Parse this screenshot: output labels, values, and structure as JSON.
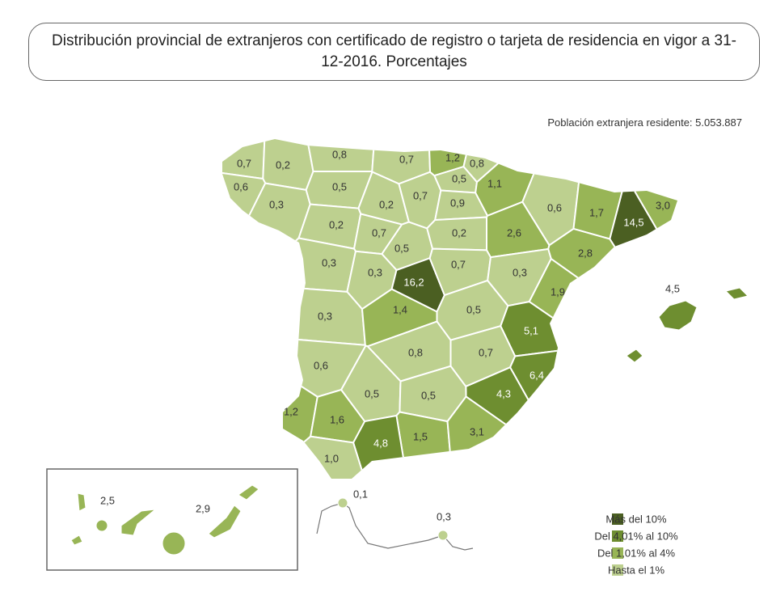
{
  "map": {
    "title": "Distribución provincial de extranjeros con certificado de registro o tarjeta de residencia en vigor a 31-12-2016. Porcentajes",
    "note": "Población extranjera residente: 5.053.887",
    "legend": [
      {
        "label": "Más del 10%",
        "color": "#4b5f22"
      },
      {
        "label": "Del 4,01% al 10%",
        "color": "#6e8e30"
      },
      {
        "label": "Del 1,01% al 4%",
        "color": "#98b556"
      },
      {
        "label": "Hasta el 1%",
        "color": "#bdd08f"
      }
    ],
    "regions": [
      {
        "label": "0,7",
        "value": 0.7,
        "color": "#bdd08f"
      },
      {
        "label": "0,2",
        "value": 0.2,
        "color": "#bdd08f"
      },
      {
        "label": "0,6",
        "value": 0.6,
        "color": "#bdd08f"
      },
      {
        "label": "0,3",
        "value": 0.3,
        "color": "#bdd08f"
      },
      {
        "label": "0,8",
        "value": 0.8,
        "color": "#bdd08f"
      },
      {
        "label": "0,7",
        "value": 0.7,
        "color": "#bdd08f"
      },
      {
        "label": "1,2",
        "value": 1.2,
        "color": "#98b556"
      },
      {
        "label": "0,8",
        "value": 0.8,
        "color": "#bdd08f"
      },
      {
        "label": "0,5",
        "value": 0.5,
        "color": "#bdd08f"
      },
      {
        "label": "1,1",
        "value": 1.1,
        "color": "#98b556"
      },
      {
        "label": "0,5",
        "value": 0.5,
        "color": "#bdd08f"
      },
      {
        "label": "0,2",
        "value": 0.2,
        "color": "#bdd08f"
      },
      {
        "label": "0,7",
        "value": 0.7,
        "color": "#bdd08f"
      },
      {
        "label": "0,9",
        "value": 0.9,
        "color": "#bdd08f"
      },
      {
        "label": "0,6",
        "value": 0.6,
        "color": "#bdd08f"
      },
      {
        "label": "1,7",
        "value": 1.7,
        "color": "#98b556"
      },
      {
        "label": "3,0",
        "value": 3.0,
        "color": "#98b556"
      },
      {
        "label": "14,5",
        "value": 14.5,
        "color": "#4b5f22"
      },
      {
        "label": "0,2",
        "value": 0.2,
        "color": "#bdd08f"
      },
      {
        "label": "0,7",
        "value": 0.7,
        "color": "#bdd08f"
      },
      {
        "label": "0,2",
        "value": 0.2,
        "color": "#bdd08f"
      },
      {
        "label": "2,6",
        "value": 2.6,
        "color": "#98b556"
      },
      {
        "label": "2,8",
        "value": 2.8,
        "color": "#98b556"
      },
      {
        "label": "0,5",
        "value": 0.5,
        "color": "#bdd08f"
      },
      {
        "label": "0,3",
        "value": 0.3,
        "color": "#bdd08f"
      },
      {
        "label": "0,3",
        "value": 0.3,
        "color": "#bdd08f"
      },
      {
        "label": "16,2",
        "value": 16.2,
        "color": "#4b5f22"
      },
      {
        "label": "0,7",
        "value": 0.7,
        "color": "#bdd08f"
      },
      {
        "label": "0,3",
        "value": 0.3,
        "color": "#bdd08f"
      },
      {
        "label": "1,9",
        "value": 1.9,
        "color": "#98b556"
      },
      {
        "label": "0,3",
        "value": 0.3,
        "color": "#bdd08f"
      },
      {
        "label": "1,4",
        "value": 1.4,
        "color": "#98b556"
      },
      {
        "label": "0,5",
        "value": 0.5,
        "color": "#bdd08f"
      },
      {
        "label": "5,1",
        "value": 5.1,
        "color": "#6e8e30"
      },
      {
        "label": "0,6",
        "value": 0.6,
        "color": "#bdd08f"
      },
      {
        "label": "0,8",
        "value": 0.8,
        "color": "#bdd08f"
      },
      {
        "label": "0,7",
        "value": 0.7,
        "color": "#bdd08f"
      },
      {
        "label": "6,4",
        "value": 6.4,
        "color": "#6e8e30"
      },
      {
        "label": "4,3",
        "value": 4.3,
        "color": "#6e8e30"
      },
      {
        "label": "1,2",
        "value": 1.2,
        "color": "#98b556"
      },
      {
        "label": "1,6",
        "value": 1.6,
        "color": "#98b556"
      },
      {
        "label": "0,5",
        "value": 0.5,
        "color": "#bdd08f"
      },
      {
        "label": "0,5",
        "value": 0.5,
        "color": "#bdd08f"
      },
      {
        "label": "1,5",
        "value": 1.5,
        "color": "#98b556"
      },
      {
        "label": "3,1",
        "value": 3.1,
        "color": "#98b556"
      },
      {
        "label": "4,8",
        "value": 4.8,
        "color": "#6e8e30"
      },
      {
        "label": "1,0",
        "value": 1.0,
        "color": "#bdd08f"
      },
      {
        "label": "4,5",
        "value": 4.5,
        "color": "#6e8e30"
      },
      {
        "label": "2,5",
        "value": 2.5,
        "color": "#98b556"
      },
      {
        "label": "2,9",
        "value": 2.9,
        "color": "#98b556"
      },
      {
        "label": "0,1",
        "value": 0.1,
        "color": "#bdd08f"
      },
      {
        "label": "0,3",
        "value": 0.3,
        "color": "#bdd08f"
      }
    ]
  }
}
